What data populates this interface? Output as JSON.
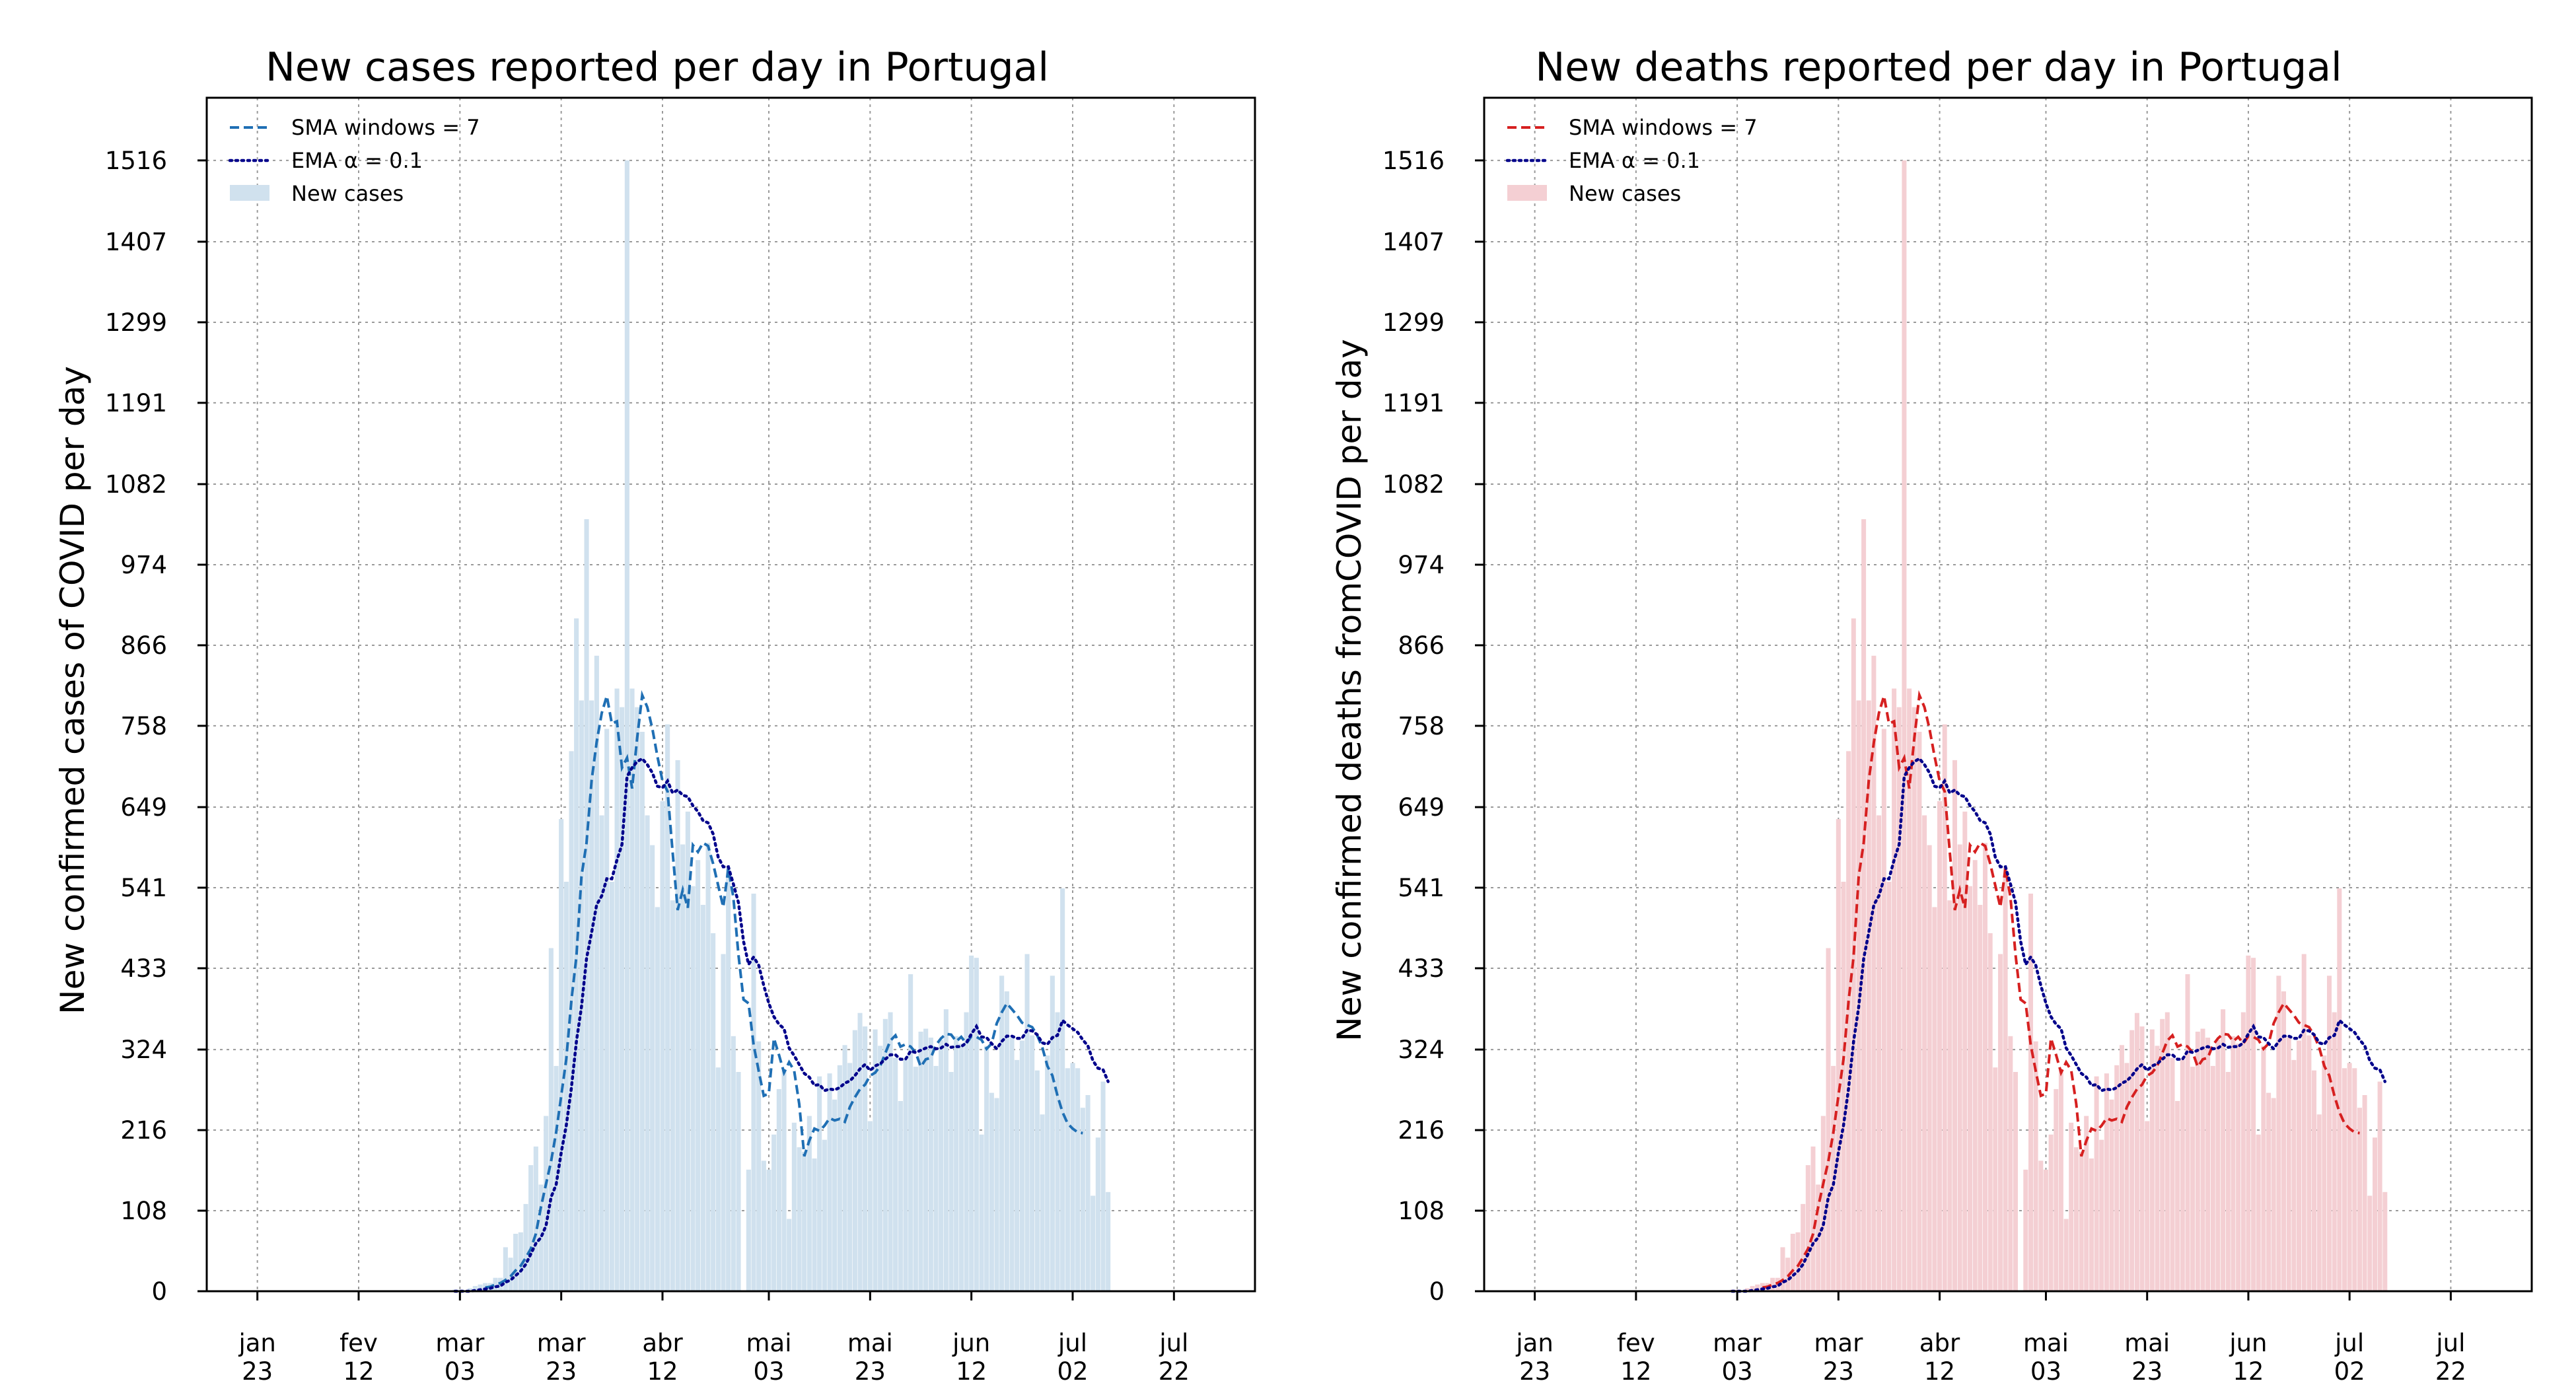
{
  "chart_data": [
    {
      "type": "bar",
      "title": "New cases reported per day in Portugal",
      "xlabel": "",
      "ylabel": "New confirmed cases of COVID per day",
      "ylim": [
        0,
        1600
      ],
      "y_ticks": [
        "0",
        "108",
        "216",
        "324",
        "433",
        "541",
        "649",
        "758",
        "866",
        "974",
        "1082",
        "1191",
        "1299",
        "1407",
        "1516"
      ],
      "x_ticks": [
        {
          "date": "2020-01-23",
          "month": "jan",
          "day": "23"
        },
        {
          "date": "2020-02-12",
          "month": "fev",
          "day": "12"
        },
        {
          "date": "2020-03-03",
          "month": "mar",
          "day": "03"
        },
        {
          "date": "2020-03-23",
          "month": "mar",
          "day": "23"
        },
        {
          "date": "2020-04-12",
          "month": "abr",
          "day": "12"
        },
        {
          "date": "2020-05-03",
          "month": "mai",
          "day": "03"
        },
        {
          "date": "2020-05-23",
          "month": "mai",
          "day": "23"
        },
        {
          "date": "2020-06-12",
          "month": "jun",
          "day": "12"
        },
        {
          "date": "2020-07-02",
          "month": "jul",
          "day": "02"
        },
        {
          "date": "2020-07-22",
          "month": "jul",
          "day": "22"
        }
      ],
      "xlim": [
        "2020-01-13",
        "2020-08-07"
      ],
      "grid": true,
      "legend_position": "top-left",
      "colors": {
        "bars": "#d0e1ee",
        "sma": "#1f6fb4",
        "ema": "#00008b"
      },
      "legend": [
        "SMA windows = 7",
        "EMA α = 0.1",
        "New cases"
      ],
      "series": [
        {
          "name": "New cases",
          "style": "bars",
          "start": "2020-03-02",
          "values": [
            2,
            2,
            0,
            4,
            7,
            9,
            11,
            11,
            18,
            18,
            59,
            45,
            77,
            79,
            117,
            169,
            194,
            143,
            235,
            460,
            302,
            633,
            549,
            724,
            902,
            792,
            1035,
            792,
            852,
            638,
            754,
            549,
            808,
            783,
            1516,
            808,
            783,
            750,
            638,
            598,
            515,
            657,
            760,
            524,
            712,
            599,
            643,
            543,
            578,
            518,
            601,
            480,
            300,
            452,
            568,
            342,
            294,
            0,
            163,
            533,
            335,
            175,
            163,
            210,
            271,
            296,
            97,
            226,
            193,
            187,
            235,
            178,
            288,
            203,
            292,
            257,
            303,
            330,
            306,
            350,
            373,
            355,
            228,
            351,
            329,
            365,
            374,
            313,
            255,
            310,
            425,
            301,
            348,
            352,
            340,
            302,
            337,
            378,
            294,
            342,
            332,
            374,
            450,
            447,
            210,
            329,
            266,
            259,
            423,
            402,
            340,
            310,
            336,
            452,
            343,
            296,
            237,
            316,
            423,
            374,
            540,
            299,
            306,
            299,
            246,
            263,
            128,
            206,
            281,
            133
          ]
        },
        {
          "name": "SMA windows = 7",
          "style": "dashed",
          "start": "2020-03-08",
          "values": [
            5,
            6,
            9,
            11,
            15,
            20,
            28,
            34,
            45,
            57,
            77,
            113,
            144,
            174,
            213,
            262,
            311,
            389,
            449,
            556,
            601,
            685,
            736,
            775,
            798,
            761,
            764,
            702,
            715,
            674,
            742,
            799,
            783,
            754,
            717,
            684,
            670,
            589,
            511,
            538,
            514,
            598,
            589,
            601,
            597,
            573,
            544,
            515,
            567,
            528,
            451,
            391,
            386,
            330,
            295,
            262,
            265,
            339,
            317,
            293,
            307,
            296,
            251,
            181,
            202,
            218,
            215,
            222,
            232,
            229,
            231,
            227,
            247,
            260,
            271,
            277,
            289,
            293,
            302,
            319,
            336,
            343,
            328,
            331,
            328,
            320,
            301,
            311,
            313,
            330,
            339,
            345,
            344,
            335,
            341,
            332,
            342,
            341,
            337,
            325,
            332,
            359,
            374,
            386,
            378,
            370,
            360,
            357,
            354,
            343,
            327,
            302,
            289,
            262,
            240,
            225,
            218,
            213,
            212
          ]
        },
        {
          "name": "EMA α = 0.1",
          "style": "dotted",
          "start": "2020-03-02",
          "values": [
            0,
            0,
            0,
            0,
            1,
            2,
            3,
            4,
            6,
            7,
            12,
            15,
            21,
            27,
            36,
            50,
            64,
            72,
            88,
            126,
            143,
            186,
            222,
            272,
            335,
            381,
            446,
            481,
            518,
            530,
            553,
            553,
            578,
            599,
            690,
            702,
            710,
            714,
            706,
            695,
            677,
            675,
            684,
            668,
            672,
            665,
            663,
            651,
            643,
            631,
            628,
            613,
            582,
            569,
            569,
            546,
            521,
            469,
            438,
            448,
            437,
            410,
            386,
            368,
            358,
            352,
            326,
            316,
            304,
            292,
            287,
            276,
            277,
            269,
            271,
            270,
            273,
            279,
            282,
            289,
            298,
            304,
            296,
            302,
            305,
            311,
            317,
            317,
            311,
            311,
            322,
            320,
            323,
            326,
            328,
            325,
            326,
            331,
            327,
            328,
            328,
            333,
            345,
            355,
            341,
            340,
            332,
            325,
            335,
            342,
            342,
            339,
            339,
            350,
            349,
            344,
            333,
            331,
            340,
            343,
            363,
            357,
            352,
            347,
            337,
            329,
            309,
            299,
            297,
            281
          ]
        }
      ]
    },
    {
      "type": "bar",
      "title": "New deaths reported per day in Portugal",
      "xlabel": "",
      "ylabel": "New confirmed deaths fromCOVID per day",
      "ylim": [
        0,
        1600
      ],
      "y_ticks": [
        "0",
        "108",
        "216",
        "324",
        "433",
        "541",
        "649",
        "758",
        "866",
        "974",
        "1082",
        "1191",
        "1299",
        "1407",
        "1516"
      ],
      "x_ticks": [
        {
          "date": "2020-01-23",
          "month": "jan",
          "day": "23"
        },
        {
          "date": "2020-02-12",
          "month": "fev",
          "day": "12"
        },
        {
          "date": "2020-03-03",
          "month": "mar",
          "day": "03"
        },
        {
          "date": "2020-03-23",
          "month": "mar",
          "day": "23"
        },
        {
          "date": "2020-04-12",
          "month": "abr",
          "day": "12"
        },
        {
          "date": "2020-05-03",
          "month": "mai",
          "day": "03"
        },
        {
          "date": "2020-05-23",
          "month": "mai",
          "day": "23"
        },
        {
          "date": "2020-06-12",
          "month": "jun",
          "day": "12"
        },
        {
          "date": "2020-07-02",
          "month": "jul",
          "day": "02"
        },
        {
          "date": "2020-07-22",
          "month": "jul",
          "day": "22"
        }
      ],
      "xlim": [
        "2020-01-13",
        "2020-08-07"
      ],
      "grid": true,
      "legend_position": "top-left",
      "colors": {
        "bars": "#f4cfd3",
        "sma": "#d62020",
        "ema": "#00008b"
      },
      "legend": [
        "SMA windows = 7",
        "EMA α = 0.1",
        "New cases"
      ],
      "series": [
        {
          "name": "New cases",
          "style": "bars",
          "start": "2020-03-02",
          "values": [
            2,
            2,
            0,
            4,
            7,
            9,
            11,
            11,
            18,
            18,
            59,
            45,
            77,
            79,
            117,
            169,
            194,
            143,
            235,
            460,
            302,
            633,
            549,
            724,
            902,
            792,
            1035,
            792,
            852,
            638,
            754,
            549,
            808,
            783,
            1516,
            808,
            783,
            750,
            638,
            598,
            515,
            657,
            760,
            524,
            712,
            599,
            643,
            543,
            578,
            518,
            601,
            480,
            300,
            452,
            568,
            342,
            294,
            0,
            163,
            533,
            335,
            175,
            163,
            210,
            271,
            296,
            97,
            226,
            193,
            187,
            235,
            178,
            288,
            203,
            292,
            257,
            303,
            330,
            306,
            350,
            373,
            355,
            228,
            351,
            329,
            365,
            374,
            313,
            255,
            310,
            425,
            301,
            348,
            352,
            340,
            302,
            337,
            378,
            294,
            342,
            332,
            374,
            450,
            447,
            210,
            329,
            266,
            259,
            423,
            402,
            340,
            310,
            336,
            452,
            343,
            296,
            237,
            316,
            423,
            374,
            540,
            299,
            306,
            299,
            246,
            263,
            128,
            206,
            281,
            133
          ]
        },
        {
          "name": "SMA windows = 7",
          "style": "dashed",
          "start": "2020-03-08",
          "values": [
            5,
            6,
            9,
            11,
            15,
            20,
            28,
            34,
            45,
            57,
            77,
            113,
            144,
            174,
            213,
            262,
            311,
            389,
            449,
            556,
            601,
            685,
            736,
            775,
            798,
            761,
            764,
            702,
            715,
            674,
            742,
            799,
            783,
            754,
            717,
            684,
            670,
            589,
            511,
            538,
            514,
            598,
            589,
            601,
            597,
            573,
            544,
            515,
            567,
            528,
            451,
            391,
            386,
            330,
            295,
            262,
            265,
            339,
            317,
            293,
            307,
            296,
            251,
            181,
            202,
            218,
            215,
            222,
            232,
            229,
            231,
            227,
            247,
            260,
            271,
            277,
            289,
            293,
            302,
            319,
            336,
            343,
            328,
            331,
            328,
            320,
            301,
            311,
            313,
            330,
            339,
            345,
            344,
            335,
            341,
            332,
            342,
            341,
            337,
            325,
            332,
            359,
            374,
            386,
            378,
            370,
            360,
            357,
            354,
            343,
            327,
            302,
            289,
            262,
            240,
            225,
            218,
            213,
            212
          ]
        },
        {
          "name": "EMA α = 0.1",
          "style": "dotted",
          "start": "2020-03-02",
          "values": [
            0,
            0,
            0,
            0,
            1,
            2,
            3,
            4,
            6,
            7,
            12,
            15,
            21,
            27,
            36,
            50,
            64,
            72,
            88,
            126,
            143,
            186,
            222,
            272,
            335,
            381,
            446,
            481,
            518,
            530,
            553,
            553,
            578,
            599,
            690,
            702,
            710,
            714,
            706,
            695,
            677,
            675,
            684,
            668,
            672,
            665,
            663,
            651,
            643,
            631,
            628,
            613,
            582,
            569,
            569,
            546,
            521,
            469,
            438,
            448,
            437,
            410,
            386,
            368,
            358,
            352,
            326,
            316,
            304,
            292,
            287,
            276,
            277,
            269,
            271,
            270,
            273,
            279,
            282,
            289,
            298,
            304,
            296,
            302,
            305,
            311,
            317,
            317,
            311,
            311,
            322,
            320,
            323,
            326,
            328,
            325,
            326,
            331,
            327,
            328,
            328,
            333,
            345,
            355,
            341,
            340,
            332,
            325,
            335,
            342,
            342,
            339,
            339,
            350,
            349,
            344,
            333,
            331,
            340,
            343,
            363,
            357,
            352,
            347,
            337,
            329,
            309,
            299,
            297,
            281
          ]
        }
      ]
    }
  ]
}
